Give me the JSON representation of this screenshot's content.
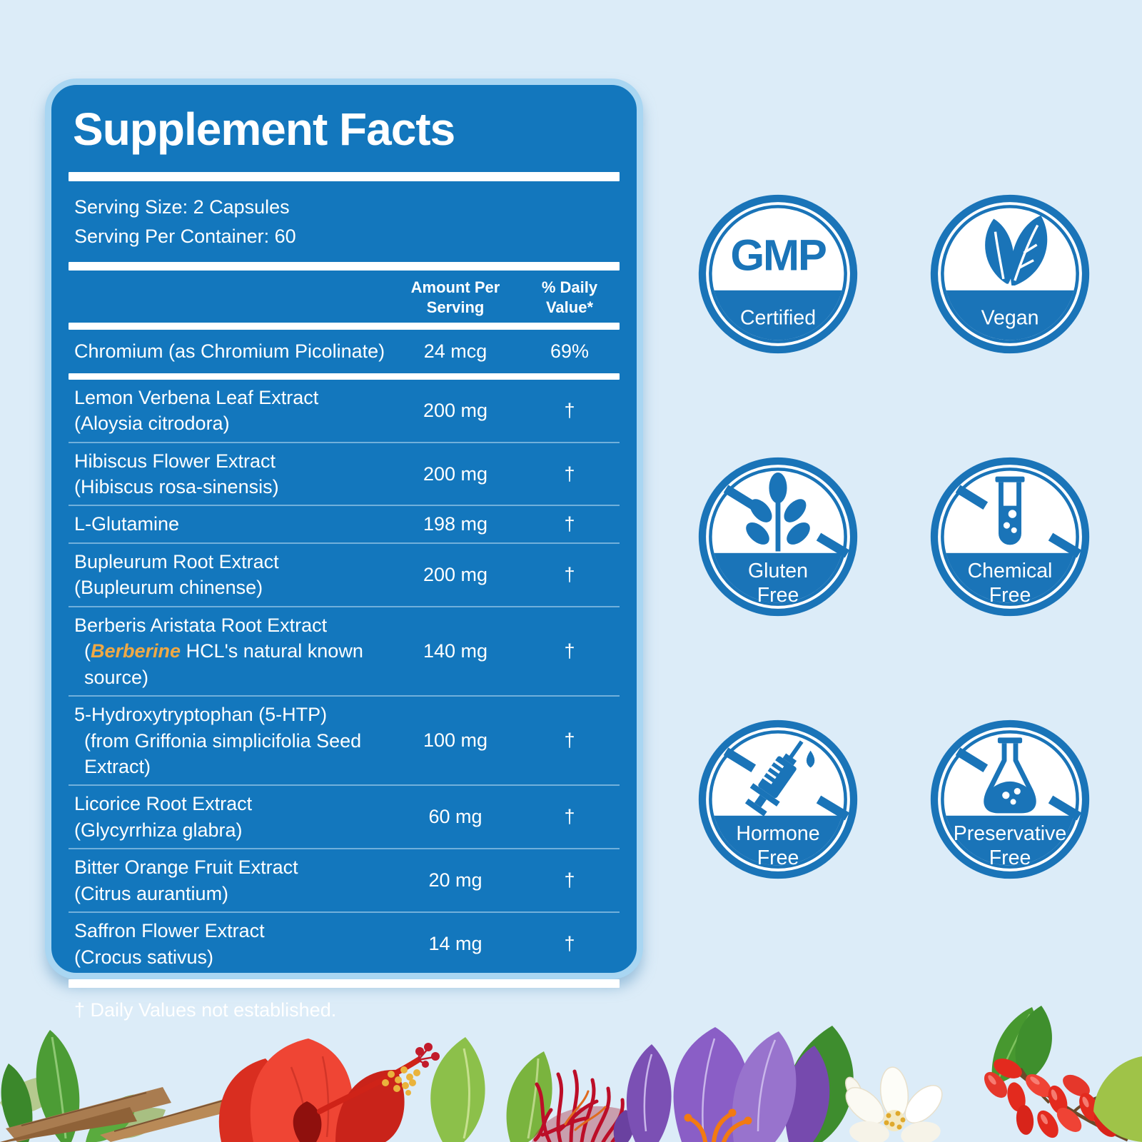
{
  "colors": {
    "page_bg": "#dcecf8",
    "panel_blue": "#1377bd",
    "panel_border": "#a9d6f2",
    "badge_blue": "#1a74b8",
    "highlight_orange": "#f0a944",
    "text_white": "#ffffff"
  },
  "panel": {
    "title": "Supplement Facts",
    "serving_size": "Serving Size: 2 Capsules",
    "servings_per_container": "Serving Per Container: 60",
    "columns": {
      "amount": "Amount Per\nServing",
      "daily_value": "% Daily\nValue*"
    },
    "rows": [
      {
        "name": "Chromium (as Chromium Picolinate)",
        "amount": "24 mcg",
        "dv": "69%"
      },
      {
        "name": "Lemon Verbena Leaf Extract",
        "sub": "(Aloysia citrodora)",
        "amount": "200 mg",
        "dv": "†"
      },
      {
        "name": "Hibiscus Flower Extract",
        "sub": "(Hibiscus rosa-sinensis)",
        "amount": "200 mg",
        "dv": "†"
      },
      {
        "name": "L-Glutamine",
        "amount": "198 mg",
        "dv": "†"
      },
      {
        "name": "Bupleurum Root Extract",
        "sub": "(Bupleurum chinense)",
        "amount": "200 mg",
        "dv": "†"
      },
      {
        "name": "Berberis Aristata Root Extract",
        "sub_parts": [
          {
            "text": "("
          },
          {
            "text": "Berberine",
            "highlight": true
          },
          {
            "text": " HCL's natural known source)"
          }
        ],
        "sub_indent": true,
        "amount": "140 mg",
        "dv": "†"
      },
      {
        "name": "5-Hydroxytryptophan (5-HTP)",
        "sub": "(from Griffonia simplicifolia Seed Extract)",
        "sub_indent": true,
        "amount": "100 mg",
        "dv": "†"
      },
      {
        "name": "Licorice Root Extract",
        "sub": "(Glycyrrhiza glabra)",
        "amount": "60 mg",
        "dv": "†"
      },
      {
        "name": "Bitter Orange Fruit Extract",
        "sub": "(Citrus aurantium)",
        "amount": "20 mg",
        "dv": "†"
      },
      {
        "name": "Saffron Flower Extract",
        "sub": "(Crocus sativus)",
        "amount": "14 mg",
        "dv": "†"
      }
    ],
    "footnote": "† Daily Values not established."
  },
  "badges": [
    {
      "icon": "gmp-seal-icon",
      "seal_text": "GMP",
      "lines": [
        "Certified"
      ],
      "slashed": false
    },
    {
      "icon": "vegan-leaf-icon",
      "lines": [
        "Vegan"
      ],
      "slashed": false
    },
    {
      "icon": "wheat-icon",
      "lines": [
        "Gluten",
        "Free"
      ],
      "slashed": true
    },
    {
      "icon": "test-tube-icon",
      "lines": [
        "Chemical",
        "Free"
      ],
      "slashed": true
    },
    {
      "icon": "syringe-icon",
      "lines": [
        "Hormone",
        "Free"
      ],
      "slashed": true
    },
    {
      "icon": "flask-icon",
      "lines": [
        "Preservative",
        "Free"
      ],
      "slashed": true
    }
  ],
  "botanicals": [
    "verbena-leaves",
    "licorice-roots",
    "hibiscus-flower",
    "saffron-threads",
    "crocus-flower",
    "orange-blossom",
    "barberries"
  ]
}
